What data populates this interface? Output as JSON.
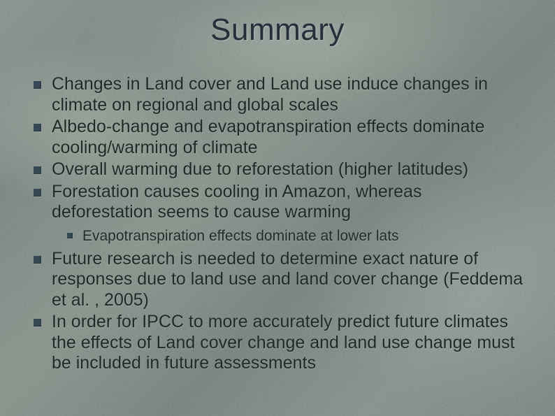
{
  "slide": {
    "title": "Summary",
    "title_color": "#24313a",
    "title_fontsize_pt": 33,
    "body_fontsize_pt": 19,
    "sub_fontsize_pt": 16,
    "font_family": "Tahoma",
    "bullet_color": "#364854",
    "background_base_color": "#828f89",
    "text_color": "#1e2a25",
    "bullets": [
      {
        "text": "Changes in Land cover and Land use induce changes in climate on regional and global scales"
      },
      {
        "text": " Albedo-change and evapotranspiration effects dominate cooling/warming of climate"
      },
      {
        "text": "Overall warming due to reforestation (higher latitudes)"
      },
      {
        "text": "Forestation causes cooling in Amazon, whereas deforestation seems to cause warming",
        "sub": [
          {
            "text": "Evapotranspiration effects dominate at lower lats"
          }
        ]
      },
      {
        "text": "Future research is needed to determine exact nature of responses due to land use and land cover change (Feddema et al. , 2005)"
      },
      {
        "text": "In order for IPCC to more accurately predict future climates the effects of Land cover change and land use change must be included in future assessments"
      }
    ]
  }
}
